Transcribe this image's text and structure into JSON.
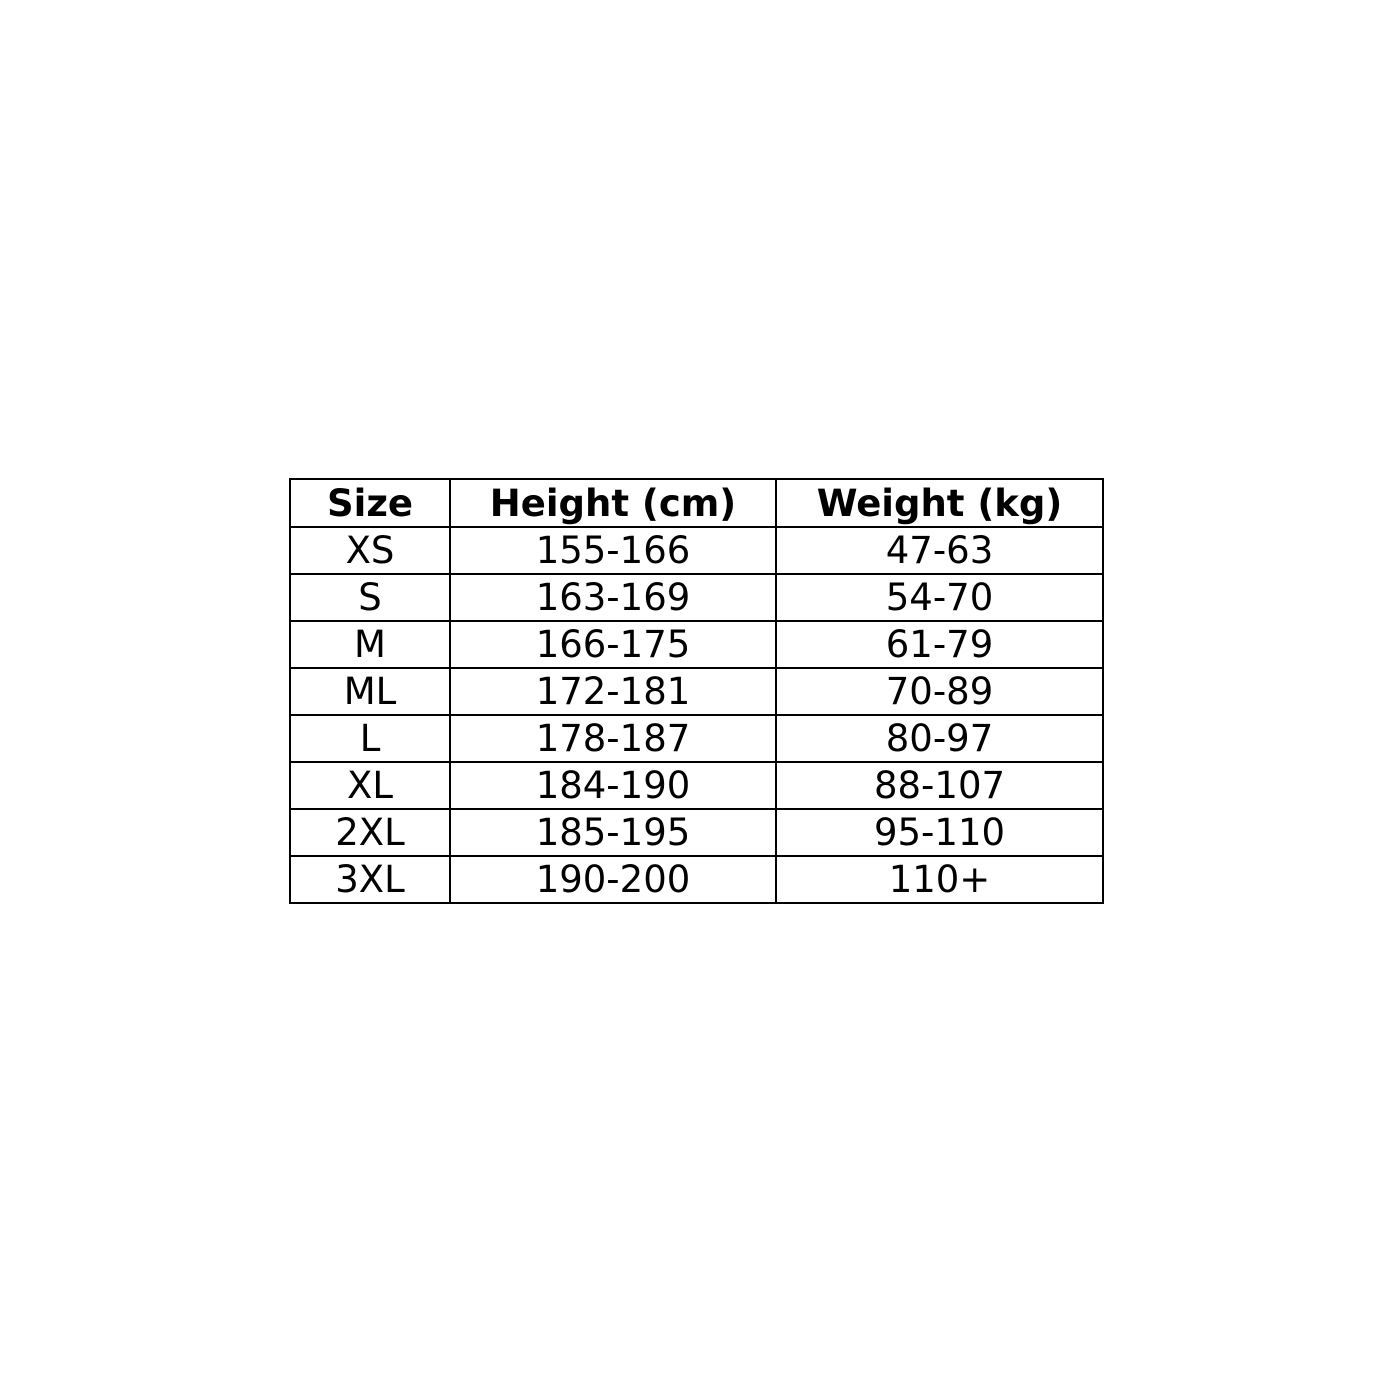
{
  "table": {
    "headers": [
      "Size",
      "Height (cm)",
      "Weight (kg)"
    ],
    "rows": [
      [
        "XS",
        "155-166",
        "47-63"
      ],
      [
        "S",
        "163-169",
        "54-70"
      ],
      [
        "M",
        "166-175",
        "61-79"
      ],
      [
        "ML",
        "172-181",
        "70-89"
      ],
      [
        "L",
        "178-187",
        "80-97"
      ],
      [
        "XL",
        "184-190",
        "88-107"
      ],
      [
        "2XL",
        "185-195",
        "95-110"
      ],
      [
        "3XL",
        "190-200",
        "110+"
      ]
    ]
  }
}
